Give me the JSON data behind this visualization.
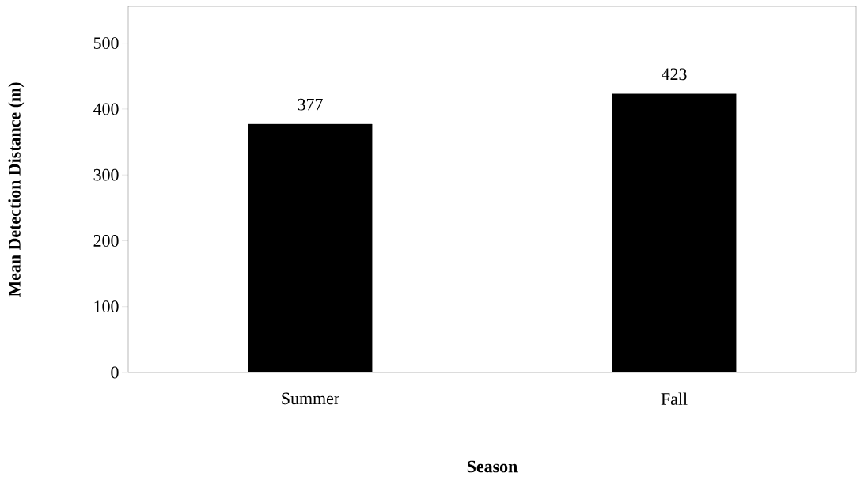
{
  "chart_data": {
    "type": "bar",
    "xlabel": "Season",
    "ylabel": "Mean Detection Distance (m)",
    "categories": [
      "Summer",
      "Fall"
    ],
    "values": [
      377,
      423
    ],
    "color": "#000000",
    "data_labels": true,
    "ylim": [
      0,
      556
    ],
    "yticks": [
      0,
      100,
      200,
      300,
      400,
      500
    ],
    "grid": false
  }
}
